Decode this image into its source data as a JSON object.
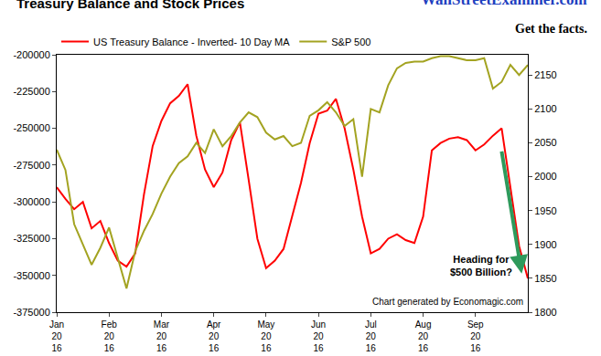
{
  "chart_data": {
    "type": "line",
    "title": "Treasury Balance and Stock Prices",
    "header": "WallStreetExaminer.com",
    "tagline": "Get the facts.",
    "annotation": "Heading for\n$500 Billion?",
    "source": "Chart generated by Economagic.com",
    "categories": [
      "Jan\n20\n16",
      null,
      null,
      null,
      null,
      null,
      "Feb\n20\n16",
      null,
      null,
      null,
      null,
      null,
      "Mar\n20\n16",
      null,
      null,
      null,
      null,
      null,
      "Apr\n20\n16",
      null,
      null,
      null,
      null,
      null,
      "May\n20\n16",
      null,
      null,
      null,
      null,
      null,
      "Jun\n20\n16",
      null,
      null,
      null,
      null,
      null,
      "Jul\n20\n16",
      null,
      null,
      null,
      null,
      null,
      "Aug\n20\n16",
      null,
      null,
      null,
      null,
      null,
      "Sep\n20\n16",
      null,
      null,
      null,
      null,
      null,
      null
    ],
    "series": [
      {
        "name": "US Treasury Balance - Inverted- 10 Day MA",
        "color": "#ff0000",
        "axis": "y",
        "values": [
          -290000,
          -298000,
          -305000,
          -300000,
          -318000,
          -313000,
          -328000,
          -340000,
          -344000,
          -335000,
          -295000,
          -262000,
          -245000,
          -233000,
          -228000,
          -220000,
          -255000,
          -278000,
          -290000,
          -280000,
          -258000,
          -246000,
          -285000,
          -325000,
          -345000,
          -340000,
          -332000,
          -310000,
          -287000,
          -260000,
          -240000,
          -238000,
          -230000,
          -250000,
          -278000,
          -310000,
          -335000,
          -332000,
          -325000,
          -322000,
          -326000,
          -328000,
          -310000,
          -265000,
          -260000,
          -257000,
          -256000,
          -258000,
          -265000,
          -261000,
          -255000,
          -250000,
          -290000,
          -330000,
          -352000
        ]
      },
      {
        "name": "S&P 500",
        "color": "#a3a321",
        "axis": "y2",
        "values": [
          2040,
          2010,
          1930,
          1900,
          1870,
          1895,
          1925,
          1880,
          1835,
          1890,
          1920,
          1945,
          1975,
          2000,
          2020,
          2030,
          2050,
          2035,
          2070,
          2045,
          2060,
          2080,
          2095,
          2088,
          2065,
          2055,
          2060,
          2045,
          2050,
          2090,
          2098,
          2110,
          2095,
          2075,
          2085,
          2000,
          2100,
          2095,
          2135,
          2160,
          2168,
          2170,
          2170,
          2175,
          2178,
          2178,
          2175,
          2172,
          2172,
          2175,
          2130,
          2140,
          2165,
          2150,
          2165
        ]
      }
    ],
    "ylim": [
      -375000,
      -200000
    ],
    "yticks": [
      -375000,
      -350000,
      -325000,
      -300000,
      -275000,
      -250000,
      -225000,
      -200000
    ],
    "y2lim": [
      1800,
      2180
    ],
    "y2ticks": [
      1800,
      1850,
      1900,
      1950,
      2000,
      2050,
      2100,
      2150
    ],
    "grid": false,
    "legend": "top"
  }
}
